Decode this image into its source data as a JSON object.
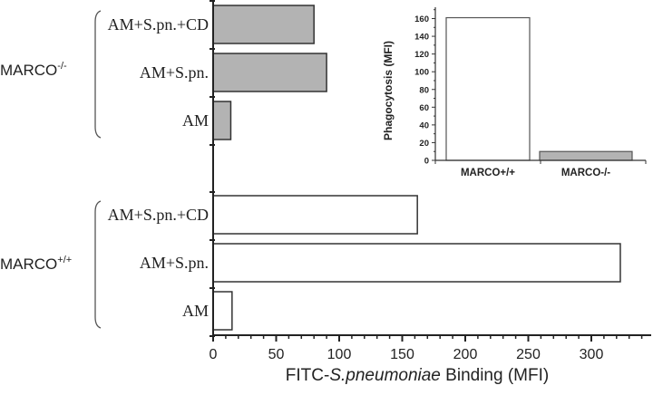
{
  "chart_data": [
    {
      "type": "bar",
      "orientation": "horizontal",
      "title": "",
      "xlabel_parts": {
        "prefix": "FITC-",
        "italic": "S.pneumoniae",
        "suffix": " Binding (MFI)"
      },
      "xlabel": "FITC-S.pneumoniae Binding (MFI)",
      "ylabel": "",
      "xlim": [
        0,
        350
      ],
      "xticks": [
        "0",
        "50",
        "100",
        "150",
        "200",
        "250",
        "300"
      ],
      "groups": [
        {
          "name": "MARCO-/-",
          "label_base": "MARCO",
          "label_sup": "-/-",
          "fill": "#b3b3b3",
          "categories": [
            "AM+S.pn.+CD",
            "AM+S.pn.",
            "AM"
          ],
          "values": [
            80,
            90,
            14
          ]
        },
        {
          "name": "MARCO+/+",
          "label_base": "MARCO",
          "label_sup": "+/+",
          "fill": "#ffffff",
          "categories": [
            "AM+S.pn.+CD",
            "AM+S.pn.",
            "AM"
          ],
          "values": [
            162,
            323,
            15
          ]
        }
      ],
      "grid": false,
      "legend": "none"
    },
    {
      "type": "bar",
      "role": "inset",
      "title": "",
      "categories": [
        "MARCO+/+",
        "MARCO-/-"
      ],
      "values": [
        161,
        10
      ],
      "fills": [
        "#ffffff",
        "#b3b3b3"
      ],
      "xlabel": "",
      "ylabel": "Phagocytosis (MFI)",
      "ylim": [
        0,
        170
      ],
      "yticks": [
        "0",
        "20",
        "40",
        "60",
        "80",
        "100",
        "120",
        "140",
        "160"
      ],
      "grid": false,
      "legend": "none"
    }
  ]
}
